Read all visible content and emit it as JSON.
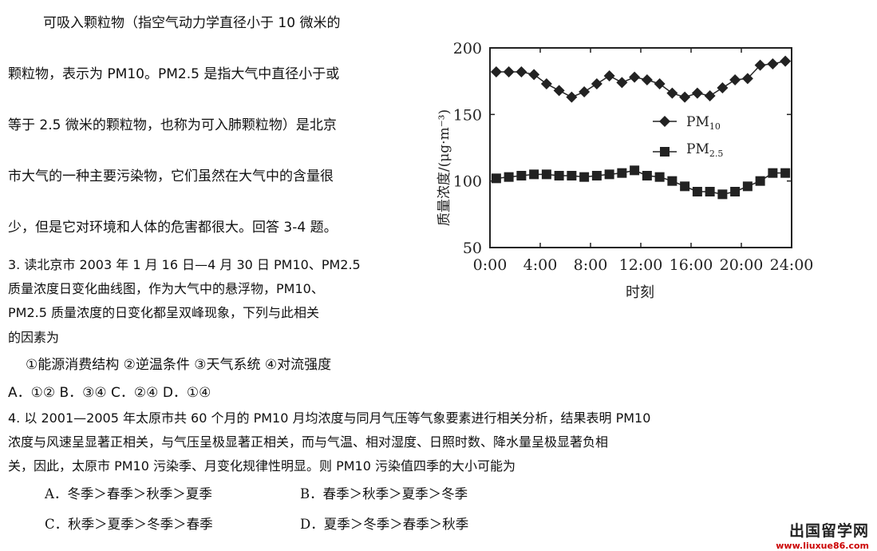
{
  "intro": {
    "lines": [
      "可吸入颗粒物（指空气动力学直径小于 10 微米的",
      "颗粒物，表示为 PM10。PM2.5 是指大气中直径小于或",
      "等于 2.5 微米的颗粒物，也称为可入肺颗粒物）是北京",
      "市大气的一种主要污染物，它们虽然在大气中的含量很",
      "少，但是它对环境和人体的危害都很大。回答 3-4 题。"
    ]
  },
  "q3": {
    "lines": [
      "3. 读北京市 2003 年 1 月 16 日—4 月 30 日 PM10、PM2.5",
      "质量浓度日变化曲线图，作为大气中的悬浮物，PM10、",
      "PM2.5 质量浓度的日变化都呈双峰现象，下列与此相关",
      "的因素为"
    ],
    "factors": "①能源消费结构  ②逆温条件  ③天气系统   ④对流强度",
    "options": "A．①②     B．③④     C．②④      D．①④"
  },
  "q4": {
    "lines": [
      "4. 以 2001—2005 年太原市共 60 个月的 PM10 月均浓度与同月气压等气象要素进行相关分析，结果表明 PM10",
      "浓度与风速呈显著正相关，与气压呈极显著正相关，而与气温、相对湿度、日照时数、降水量呈极显著负相",
      "关，因此，太原市 PM10 污染季、月变化规律性明显。则 PM10 污染值四季的大小可能为"
    ],
    "options": {
      "A": "A．冬季＞春季＞秋季＞夏季",
      "B": "B．春季＞秋季＞夏季＞冬季",
      "C": "C．秋季＞夏季＞冬季＞春季",
      "D": "D．夏季＞冬季＞春季＞秋季"
    }
  },
  "watermark": {
    "title": "出国留学网",
    "url": "www.liuxue86.com"
  },
  "chart_data": {
    "type": "line",
    "xlabel": "时刻",
    "ylabel": "质量浓度/(μg·m⁻³)",
    "x_tick_labels": [
      "0:00",
      "4:00",
      "8:00",
      "12:00",
      "16:00",
      "20:00",
      "24:00"
    ],
    "y_tick_labels": [
      "50",
      "100",
      "150",
      "200"
    ],
    "xlim": [
      0,
      24
    ],
    "ylim": [
      50,
      200
    ],
    "grid": false,
    "legend_position": "upper-right",
    "x": [
      0,
      1,
      2,
      3,
      4,
      5,
      6,
      7,
      8,
      9,
      10,
      11,
      12,
      13,
      14,
      15,
      16,
      17,
      18,
      19,
      20,
      21,
      22,
      23
    ],
    "series": [
      {
        "name": "PM10",
        "marker": "diamond",
        "values": [
          182,
          182,
          182,
          180,
          173,
          168,
          163,
          167,
          173,
          179,
          174,
          178,
          176,
          173,
          166,
          163,
          166,
          164,
          170,
          176,
          177,
          187,
          188,
          190
        ]
      },
      {
        "name": "PM2.5",
        "marker": "square",
        "values": [
          102,
          103,
          104,
          105,
          105,
          104,
          104,
          103,
          104,
          105,
          106,
          108,
          104,
          103,
          100,
          96,
          92,
          92,
          90,
          92,
          96,
          100,
          106,
          106
        ]
      }
    ]
  }
}
